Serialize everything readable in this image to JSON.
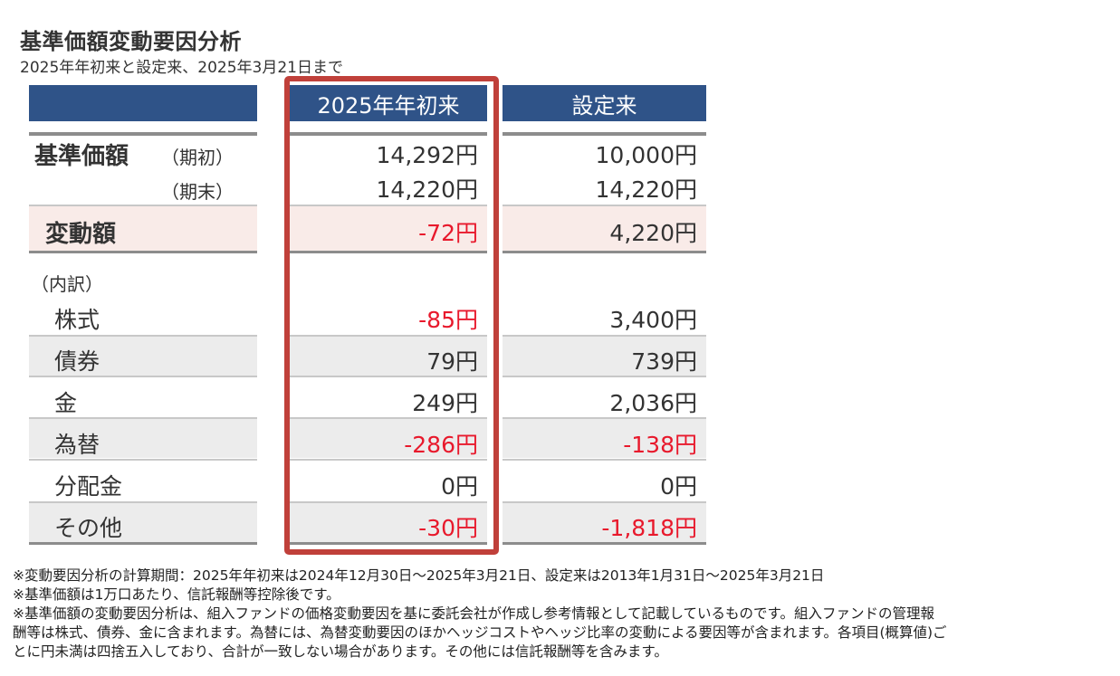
{
  "title": "基準価額変動要因分析",
  "subtitle": "2025年年初来と設定来、2025年3月21日まで",
  "columns": {
    "ytd": "2025年年初来",
    "since_inception": "設定来"
  },
  "nav": {
    "label": "基準価額",
    "start_label": "（期初）",
    "end_label": "（期末）",
    "start": {
      "ytd": "14,292円",
      "since": "10,000円"
    },
    "end": {
      "ytd": "14,220円",
      "since": "14,220円"
    }
  },
  "change": {
    "label": "変動額",
    "ytd": "-72円",
    "since": "4,220円"
  },
  "breakdown_label": "（内訳）",
  "breakdown": [
    {
      "label": "株式",
      "ytd": "-85円",
      "since": "3,400円"
    },
    {
      "label": "債券",
      "ytd": "79円",
      "since": "739円"
    },
    {
      "label": "金",
      "ytd": "249円",
      "since": "2,036円"
    },
    {
      "label": "為替",
      "ytd": "-286円",
      "since": "-138円"
    },
    {
      "label": "分配金",
      "ytd": "0円",
      "since": "0円"
    },
    {
      "label": "その他",
      "ytd": "-30円",
      "since": "-1,818円"
    }
  ],
  "notes": [
    "※変動要因分析の計算期間：2025年年初来は2024年12月30日～2025年3月21日、設定来は2013年1月31日～2025年3月21日",
    "※基準価額は1万口あたり、信託報酬等控除後です。",
    "※基準価額の変動要因分析は、組入ファンドの価格変動要因を基に委託会社が作成し参考情報として記載しているものです。組入ファンドの管理報",
    "酬等は株式、債券、金に含まれます。為替には、為替変動要因のほかヘッジコストやヘッジ比率の変動による要因等が含まれます。各項目(概算値)ご",
    "とに円未満は四捨五入しており、合計が一致しない場合があります。その他には信託報酬等を含みます。"
  ],
  "colors": {
    "header": "#2f5388",
    "negative": "#e8192c",
    "highlight_border": "#c0403a",
    "change_band": "#f9ebe8"
  }
}
